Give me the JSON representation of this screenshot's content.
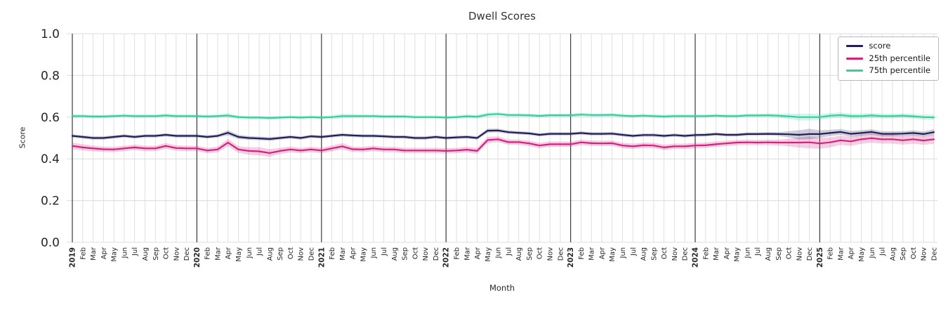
{
  "chart_data": {
    "type": "line",
    "title": "Dwell Scores",
    "xlabel": "Month",
    "ylabel": "Score",
    "ylim": [
      0.0,
      1.0
    ],
    "yticks": [
      0.0,
      0.2,
      0.4,
      0.6,
      0.8,
      1.0
    ],
    "grid": true,
    "grid_color": "#dcdcdc",
    "year_line_color": "#3b3b3b",
    "band_opacity": 0.22,
    "legend_position": "upper right",
    "year_tick_indices": [
      0,
      12,
      24,
      36,
      48,
      60,
      72
    ],
    "x_tick_labels": [
      "2019",
      "Feb",
      "Mar",
      "Apr",
      "May",
      "Jun",
      "Jul",
      "Aug",
      "Sep",
      "Oct",
      "Nov",
      "Dec",
      "2020",
      "Feb",
      "Mar",
      "Apr",
      "May",
      "Jun",
      "Jul",
      "Aug",
      "Sep",
      "Oct",
      "Nov",
      "Dec",
      "2021",
      "Feb",
      "Mar",
      "Apr",
      "May",
      "Jun",
      "Jul",
      "Aug",
      "Sep",
      "Oct",
      "Nov",
      "Dec",
      "2022",
      "Feb",
      "Mar",
      "Apr",
      "May",
      "Jun",
      "Jul",
      "Aug",
      "Sep",
      "Oct",
      "Nov",
      "Dec",
      "2023",
      "Feb",
      "Mar",
      "Apr",
      "May",
      "Jun",
      "Jul",
      "Aug",
      "Sep",
      "Oct",
      "Nov",
      "Dec",
      "2024",
      "Feb",
      "Mar",
      "Apr",
      "May",
      "Jun",
      "Jul",
      "Aug",
      "Sep",
      "Oct",
      "Nov",
      "Dec",
      "2025",
      "Feb",
      "Mar",
      "Apr",
      "May",
      "Jun",
      "Jul",
      "Aug",
      "Sep",
      "Oct",
      "Nov",
      "Dec"
    ],
    "series": [
      {
        "name": "score",
        "color": "#201f57",
        "values": [
          0.51,
          0.505,
          0.5,
          0.5,
          0.505,
          0.51,
          0.505,
          0.51,
          0.51,
          0.515,
          0.51,
          0.51,
          0.51,
          0.505,
          0.51,
          0.525,
          0.505,
          0.5,
          0.498,
          0.495,
          0.5,
          0.505,
          0.5,
          0.508,
          0.505,
          0.51,
          0.515,
          0.512,
          0.51,
          0.51,
          0.508,
          0.505,
          0.505,
          0.5,
          0.5,
          0.505,
          0.5,
          0.503,
          0.505,
          0.5,
          0.535,
          0.536,
          0.528,
          0.525,
          0.522,
          0.515,
          0.52,
          0.52,
          0.52,
          0.524,
          0.52,
          0.52,
          0.521,
          0.515,
          0.51,
          0.514,
          0.514,
          0.51,
          0.514,
          0.51,
          0.514,
          0.515,
          0.519,
          0.515,
          0.515,
          0.519,
          0.519,
          0.52,
          0.519,
          0.518,
          0.515,
          0.519,
          0.519,
          0.524,
          0.529,
          0.52,
          0.524,
          0.529,
          0.52,
          0.52,
          0.521,
          0.524,
          0.519,
          0.528
        ],
        "band_halfwidth": [
          0.008,
          0.008,
          0.008,
          0.008,
          0.008,
          0.008,
          0.008,
          0.008,
          0.008,
          0.008,
          0.008,
          0.008,
          0.008,
          0.008,
          0.008,
          0.012,
          0.01,
          0.009,
          0.009,
          0.009,
          0.008,
          0.008,
          0.008,
          0.008,
          0.008,
          0.008,
          0.008,
          0.008,
          0.008,
          0.008,
          0.008,
          0.008,
          0.008,
          0.008,
          0.008,
          0.008,
          0.008,
          0.008,
          0.008,
          0.008,
          0.01,
          0.009,
          0.008,
          0.008,
          0.008,
          0.008,
          0.008,
          0.008,
          0.008,
          0.008,
          0.008,
          0.008,
          0.008,
          0.008,
          0.008,
          0.008,
          0.008,
          0.008,
          0.008,
          0.008,
          0.008,
          0.008,
          0.008,
          0.008,
          0.008,
          0.008,
          0.008,
          0.008,
          0.009,
          0.015,
          0.022,
          0.025,
          0.018,
          0.015,
          0.014,
          0.014,
          0.013,
          0.013,
          0.012,
          0.012,
          0.012,
          0.012,
          0.012,
          0.014
        ]
      },
      {
        "name": "25th percentile",
        "color": "#d5217e",
        "values": [
          0.462,
          0.455,
          0.45,
          0.446,
          0.445,
          0.45,
          0.455,
          0.45,
          0.45,
          0.462,
          0.452,
          0.45,
          0.45,
          0.44,
          0.445,
          0.478,
          0.445,
          0.438,
          0.436,
          0.428,
          0.438,
          0.445,
          0.44,
          0.445,
          0.44,
          0.45,
          0.46,
          0.446,
          0.445,
          0.45,
          0.445,
          0.445,
          0.44,
          0.44,
          0.44,
          0.44,
          0.438,
          0.44,
          0.444,
          0.438,
          0.49,
          0.494,
          0.48,
          0.48,
          0.474,
          0.464,
          0.47,
          0.47,
          0.47,
          0.479,
          0.475,
          0.474,
          0.475,
          0.464,
          0.46,
          0.465,
          0.464,
          0.455,
          0.46,
          0.46,
          0.464,
          0.465,
          0.47,
          0.474,
          0.478,
          0.479,
          0.478,
          0.479,
          0.478,
          0.478,
          0.478,
          0.479,
          0.474,
          0.479,
          0.489,
          0.484,
          0.494,
          0.499,
          0.494,
          0.494,
          0.489,
          0.494,
          0.488,
          0.494
        ],
        "band_halfwidth": [
          0.016,
          0.015,
          0.014,
          0.013,
          0.013,
          0.013,
          0.013,
          0.013,
          0.013,
          0.014,
          0.013,
          0.013,
          0.013,
          0.013,
          0.014,
          0.018,
          0.016,
          0.018,
          0.02,
          0.018,
          0.015,
          0.014,
          0.013,
          0.013,
          0.013,
          0.014,
          0.015,
          0.013,
          0.013,
          0.013,
          0.013,
          0.013,
          0.013,
          0.013,
          0.013,
          0.013,
          0.013,
          0.013,
          0.013,
          0.014,
          0.015,
          0.014,
          0.013,
          0.013,
          0.013,
          0.013,
          0.013,
          0.013,
          0.013,
          0.013,
          0.013,
          0.013,
          0.013,
          0.013,
          0.013,
          0.013,
          0.013,
          0.013,
          0.013,
          0.013,
          0.013,
          0.013,
          0.013,
          0.013,
          0.013,
          0.013,
          0.013,
          0.013,
          0.014,
          0.018,
          0.024,
          0.028,
          0.026,
          0.024,
          0.022,
          0.022,
          0.022,
          0.022,
          0.021,
          0.021,
          0.021,
          0.021,
          0.021,
          0.022
        ]
      },
      {
        "name": "75th percentile",
        "color": "#34cf9e",
        "values": [
          0.605,
          0.605,
          0.603,
          0.603,
          0.605,
          0.607,
          0.605,
          0.605,
          0.605,
          0.608,
          0.605,
          0.605,
          0.605,
          0.603,
          0.605,
          0.608,
          0.6,
          0.598,
          0.598,
          0.596,
          0.598,
          0.6,
          0.598,
          0.6,
          0.598,
          0.6,
          0.605,
          0.605,
          0.605,
          0.605,
          0.603,
          0.603,
          0.603,
          0.6,
          0.6,
          0.6,
          0.598,
          0.6,
          0.604,
          0.602,
          0.612,
          0.615,
          0.61,
          0.61,
          0.609,
          0.606,
          0.609,
          0.609,
          0.609,
          0.612,
          0.61,
          0.61,
          0.611,
          0.607,
          0.605,
          0.607,
          0.605,
          0.603,
          0.605,
          0.605,
          0.605,
          0.605,
          0.607,
          0.605,
          0.605,
          0.608,
          0.608,
          0.609,
          0.607,
          0.604,
          0.6,
          0.6,
          0.6,
          0.607,
          0.61,
          0.605,
          0.605,
          0.608,
          0.605,
          0.605,
          0.607,
          0.604,
          0.6,
          0.599
        ],
        "band_halfwidth": [
          0.009,
          0.008,
          0.008,
          0.008,
          0.008,
          0.008,
          0.008,
          0.008,
          0.008,
          0.009,
          0.008,
          0.008,
          0.008,
          0.008,
          0.008,
          0.01,
          0.009,
          0.008,
          0.008,
          0.008,
          0.008,
          0.008,
          0.008,
          0.008,
          0.008,
          0.009,
          0.01,
          0.009,
          0.008,
          0.008,
          0.008,
          0.008,
          0.008,
          0.008,
          0.008,
          0.008,
          0.008,
          0.008,
          0.009,
          0.009,
          0.01,
          0.009,
          0.008,
          0.008,
          0.008,
          0.008,
          0.008,
          0.008,
          0.008,
          0.008,
          0.008,
          0.008,
          0.008,
          0.008,
          0.008,
          0.008,
          0.008,
          0.008,
          0.008,
          0.008,
          0.008,
          0.008,
          0.008,
          0.008,
          0.008,
          0.008,
          0.008,
          0.009,
          0.01,
          0.013,
          0.016,
          0.016,
          0.014,
          0.013,
          0.012,
          0.012,
          0.012,
          0.012,
          0.011,
          0.011,
          0.011,
          0.011,
          0.012,
          0.013
        ]
      }
    ]
  }
}
